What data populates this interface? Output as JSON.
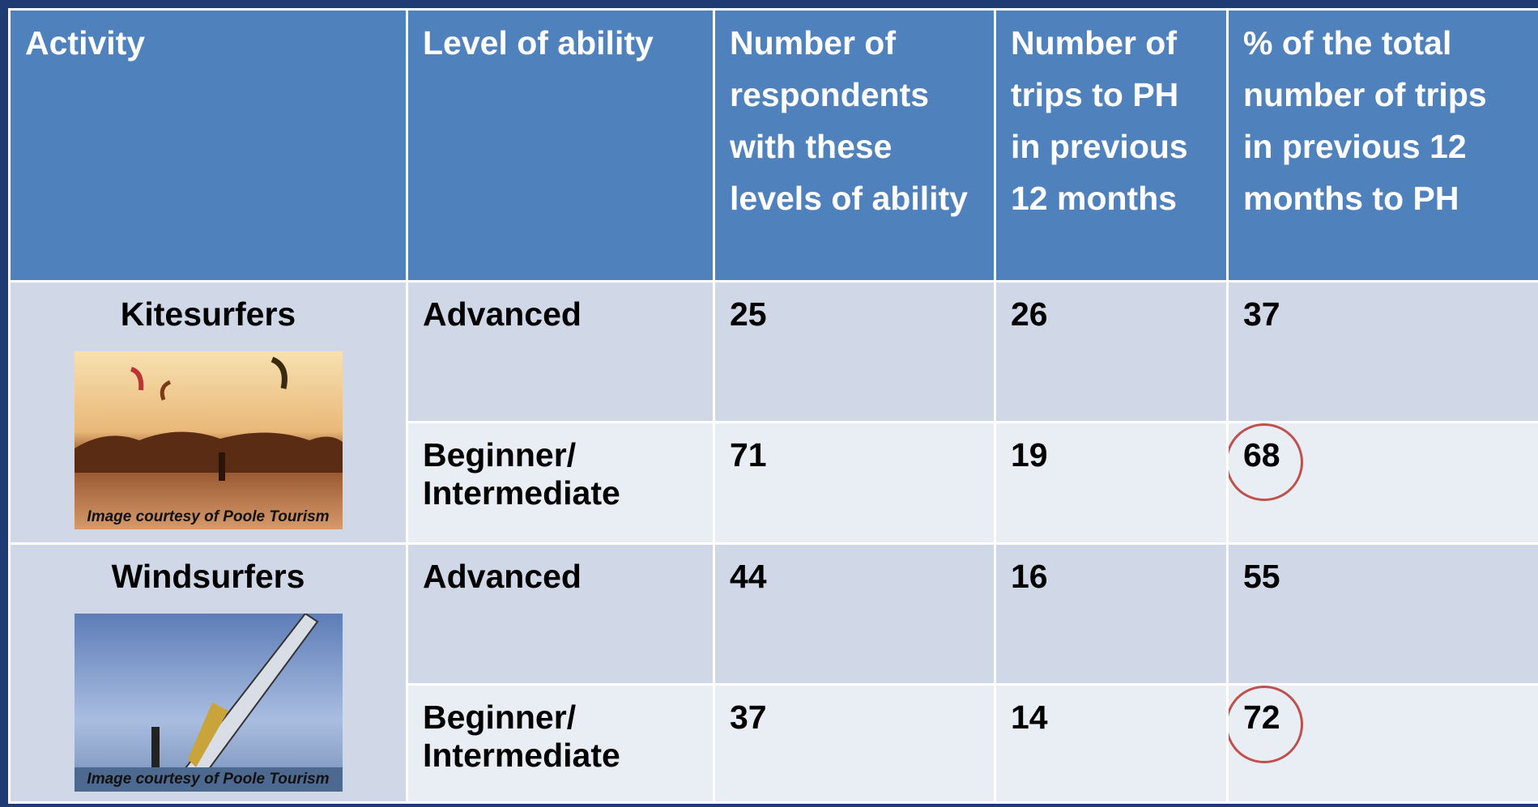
{
  "table": {
    "header": [
      "Activity",
      "Level of ability",
      "Number of respondents with these levels of ability",
      "Number of trips to PH in previous 12 months",
      "% of the total number of trips in previous 12 months to PH"
    ],
    "groups": [
      {
        "activity": "Kitesurfers",
        "image_caption": "Image courtesy of Poole Tourism",
        "levels": [
          {
            "level": "Advanced",
            "respondents": 25,
            "trips": 26,
            "percent": 37,
            "circled": false
          },
          {
            "level": "Beginner/ Intermediate",
            "respondents": 71,
            "trips": 19,
            "percent": 68,
            "circled": true
          }
        ]
      },
      {
        "activity": "Windsurfers",
        "image_caption": "Image courtesy of Poole Tourism",
        "levels": [
          {
            "level": "Advanced",
            "respondents": 44,
            "trips": 16,
            "percent": 55,
            "circled": false
          },
          {
            "level": "Beginner/ Intermediate",
            "respondents": 37,
            "trips": 14,
            "percent": 72,
            "circled": true
          }
        ]
      }
    ]
  }
}
